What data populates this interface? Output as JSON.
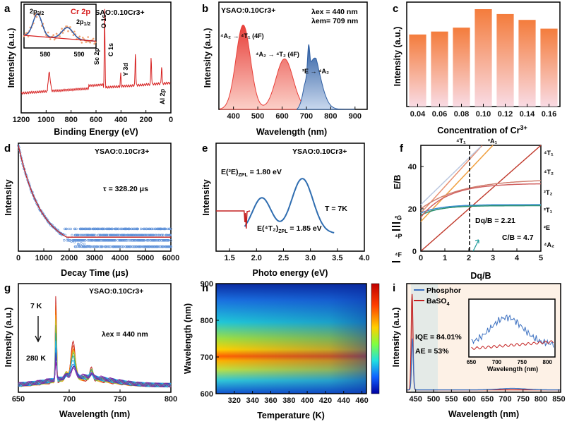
{
  "chart_data": [
    {
      "panel": "a",
      "type": "line",
      "title": "YSAO:0.10Cr3+",
      "xlabel": "Binding Energy (eV)",
      "ylabel": "Intensity (a.u.)",
      "xticks": [
        "1200",
        "1000",
        "800",
        "600",
        "400",
        "200",
        "0"
      ],
      "x_reversed": true,
      "xlim": [
        1200,
        0
      ],
      "peaks": [
        {
          "name": "O 1s",
          "x": 531
        },
        {
          "name": "Sc 2p",
          "x": 402
        },
        {
          "name": "C 1s",
          "x": 284
        },
        {
          "name": "Y 3d",
          "x": 158
        },
        {
          "name": "Al 2p",
          "x": 74
        }
      ],
      "inset": {
        "title": "Cr 2p",
        "xticks": [
          "580",
          "590"
        ],
        "peaks": [
          {
            "name": "2p3/2",
            "x": 576.5
          },
          {
            "name": "2p1/2",
            "x": 586.5
          }
        ]
      },
      "colors": {
        "line": "#d62020",
        "inset_fit": "#2b5aa8",
        "inset_points": "#f0a070"
      }
    },
    {
      "panel": "b",
      "type": "area",
      "title": "YSAO:0.10Cr3+",
      "xlabel": "Wavelength (nm)",
      "ylabel": "Intensity (a.u.)",
      "xticks": [
        "400",
        "500",
        "600",
        "700",
        "800",
        "900"
      ],
      "xlim": [
        340,
        950
      ],
      "params": [
        "λex = 440 nm",
        "λem= 709 nm"
      ],
      "transitions": [
        "4A2 → 4T1 (4F)",
        "4A2 → 4T2 (4F)",
        "2E → 4A2"
      ],
      "series": [
        {
          "name": "excitation",
          "peaks": [
            {
              "x": 440,
              "y": 0.92
            },
            {
              "x": 610,
              "y": 0.55
            }
          ]
        },
        {
          "name": "emission",
          "peaks": [
            {
              "x": 709,
              "y": 0.77
            },
            {
              "x": 730,
              "y": 0.62
            }
          ]
        }
      ],
      "colors": {
        "excitation": "#e8403a",
        "emission": "#2f5fa3"
      }
    },
    {
      "panel": "c",
      "type": "bar",
      "categories": [
        "0.04",
        "0.06",
        "0.08",
        "0.10",
        "0.12",
        "0.14",
        "0.16"
      ],
      "values": [
        0.74,
        0.77,
        0.81,
        1.0,
        0.95,
        0.89,
        0.8
      ],
      "xlabel": "Concentration of Cr3+",
      "ylabel": "Intensity (a.u.)",
      "colors": {
        "top": "#f47c3c",
        "bottom": "#f9dbe4"
      }
    },
    {
      "panel": "d",
      "type": "scatter",
      "title": "YSAO:0.10Cr3+",
      "xlabel": "Decay Time (μs)",
      "ylabel": "Intensity",
      "xticks": [
        "0",
        "1000",
        "2000",
        "3000",
        "4000",
        "5000",
        "6000"
      ],
      "xlim": [
        0,
        6000
      ],
      "annotation": "τ = 328.20 μs",
      "tau": 328.2,
      "colors": {
        "points": "#5b8fd8",
        "fit": "#c42121"
      }
    },
    {
      "panel": "e",
      "type": "line",
      "title": "YSAO:0.10Cr3+",
      "xlabel": "Photo energy (eV)",
      "ylabel": "Intensity",
      "xticks": [
        "1.5",
        "2.0",
        "2.5",
        "3.0",
        "3.5",
        "4.0"
      ],
      "xlim": [
        1.25,
        4.0
      ],
      "labels": [
        "E(2E)ZPL = 1.80 eV",
        "E(4T2)ZPL = 1.85 eV",
        "T = 7K"
      ],
      "colors": {
        "excitation": "#2f6db0",
        "emission": "#c42121"
      }
    },
    {
      "panel": "f",
      "type": "line",
      "title": "Tanabe-Sugano",
      "xlabel": "Dq/B",
      "ylabel": "E/B",
      "xticks": [
        "0",
        "1",
        "2",
        "3",
        "4",
        "5"
      ],
      "yticks": [
        "0",
        "20",
        "40"
      ],
      "xlim": [
        0,
        5
      ],
      "ylim": [
        0,
        50
      ],
      "top_labels": [
        "4T1",
        "2A1"
      ],
      "right_labels": [
        "4T1",
        "4T2",
        "2T2",
        "2T1",
        "2E",
        "4A2"
      ],
      "left_labels": [
        "2G",
        "4P",
        "4F"
      ],
      "dq_b": "Dq/B = 2.21",
      "c_b": "C/B = 4.7",
      "dq_b_value": 2.21
    },
    {
      "panel": "g",
      "type": "line",
      "title": "YSAO:0.10Cr3+",
      "xlabel": "Wavelength (nm)",
      "ylabel": "Intensity (a.u.)",
      "xticks": [
        "650",
        "700",
        "750",
        "800"
      ],
      "xlim": [
        650,
        800
      ],
      "temp_high": "7 K",
      "temp_low": "280 K",
      "lambda_ex": "λex = 440 nm"
    },
    {
      "panel": "h",
      "type": "heatmap",
      "xlabel": "Temperature (K)",
      "ylabel": "Wavelength (nm)",
      "xticks": [
        "320",
        "340",
        "360",
        "380",
        "400",
        "420",
        "440",
        "460"
      ],
      "yticks": [
        "600",
        "700",
        "800",
        "900"
      ],
      "xlim": [
        300,
        465
      ],
      "ylim": [
        600,
        900
      ]
    },
    {
      "panel": "i",
      "type": "line",
      "xlabel": "Wavelength (nm)",
      "ylabel": "Intensity (a.u.)",
      "xticks": [
        "450",
        "500",
        "550",
        "600",
        "650",
        "700",
        "750",
        "800",
        "850"
      ],
      "xlim": [
        425,
        855
      ],
      "legend": [
        "Phosphor",
        "BaSO4"
      ],
      "iqe": "IQE = 84.01%",
      "ae": "AE = 53%",
      "inset": {
        "xlabel": "Wavelength (nm)",
        "xticks": [
          "650",
          "700",
          "750",
          "800"
        ]
      },
      "colors": {
        "phosphor": "#3a6fc0",
        "baso4": "#c42121"
      }
    }
  ]
}
